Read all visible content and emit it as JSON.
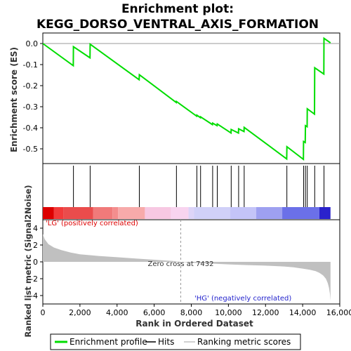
{
  "chart_data": {
    "type": "line",
    "title_line1": "Enrichment plot:",
    "title_line2": "KEGG_DORSO_VENTRAL_AXIS_FORMATION",
    "ylabel_es": "Enrichment score (ES)",
    "ylabel_metric": "Ranked list metric (Signal2Noise)",
    "xlabel": "Rank in Ordered Dataset",
    "xlim": [
      0,
      16000
    ],
    "es_ylim": [
      -0.57,
      0.05
    ],
    "metric_ylim": [
      -5,
      5
    ],
    "x_ticks": [
      0,
      2000,
      4000,
      6000,
      8000,
      10000,
      12000,
      14000,
      16000
    ],
    "x_tick_labels": [
      "0",
      "2,000",
      "4,000",
      "6,000",
      "8,000",
      "10,000",
      "12,000",
      "14,000",
      "16,000"
    ],
    "es_ticks": [
      0.0,
      -0.1,
      -0.2,
      -0.3,
      -0.4,
      -0.5
    ],
    "es_tick_labels": [
      "0.0",
      "-0.1",
      "-0.2",
      "-0.3",
      "-0.4",
      "-0.5"
    ],
    "metric_ticks": [
      4,
      2,
      0,
      -2,
      -4
    ],
    "metric_tick_labels": [
      "4",
      "2",
      "0",
      "-2",
      "-4"
    ],
    "total_genes": 15500,
    "hits": [
      1650,
      2550,
      5200,
      7200,
      8300,
      8500,
      9150,
      9400,
      10150,
      10550,
      10850,
      13150,
      14050,
      14150,
      14250,
      14650,
      15150
    ],
    "enrichment_profile": {
      "x": [
        0,
        1640,
        1650,
        2540,
        2550,
        5190,
        5200,
        7190,
        7200,
        8290,
        8300,
        8490,
        8500,
        9140,
        9150,
        9390,
        9400,
        10140,
        10150,
        10540,
        10550,
        10840,
        10850,
        13140,
        13150,
        14040,
        14050,
        14140,
        14150,
        14240,
        14250,
        14640,
        14650,
        15140,
        15150,
        15500
      ],
      "y": [
        0.0,
        -0.105,
        -0.015,
        -0.068,
        -0.003,
        -0.172,
        -0.148,
        -0.28,
        -0.275,
        -0.345,
        -0.34,
        -0.352,
        -0.348,
        -0.385,
        -0.378,
        -0.39,
        -0.382,
        -0.425,
        -0.408,
        -0.425,
        -0.405,
        -0.418,
        -0.398,
        -0.548,
        -0.49,
        -0.55,
        -0.465,
        -0.47,
        -0.39,
        -0.395,
        -0.31,
        -0.335,
        -0.115,
        -0.145,
        0.025,
        0.003
      ]
    },
    "ranked_metric": {
      "x": [
        0,
        100,
        300,
        600,
        1000,
        1500,
        2000,
        3000,
        4000,
        5000,
        6000,
        7000,
        7432,
        8000,
        9000,
        10000,
        11000,
        12000,
        13000,
        13500,
        14000,
        14400,
        14700,
        14900,
        15100,
        15250,
        15350,
        15420,
        15470,
        15500
      ],
      "y": [
        3.3,
        2.7,
        2.1,
        1.7,
        1.4,
        1.1,
        0.9,
        0.7,
        0.55,
        0.4,
        0.25,
        0.1,
        0.0,
        -0.1,
        -0.2,
        -0.3,
        -0.38,
        -0.45,
        -0.55,
        -0.65,
        -0.8,
        -0.95,
        -1.1,
        -1.3,
        -1.6,
        -2.0,
        -2.5,
        -3.1,
        -3.8,
        -4.6
      ]
    },
    "zero_cross_label": "Zero cross at 7432",
    "zero_cross": 7432,
    "pos_label": "'LG' (positively correlated)",
    "neg_label": "'HG' (negatively correlated)",
    "colors": {
      "profile": "#00dd00",
      "hit": "#000000",
      "metric_fill": "#c0c0c0",
      "pos_text": "#dd0000",
      "neg_text": "#2222cc",
      "zero_cross": "#999999"
    },
    "color_bar": {
      "x": [
        0,
        600,
        1100,
        2700,
        2750,
        3750,
        4050,
        5500,
        6900,
        7850,
        8150,
        10100,
        11500,
        12900,
        14900,
        15500
      ],
      "colors": [
        "#dd0000",
        "#f23a3a",
        "#ea4c4c",
        "#ee6161",
        "#f07a7a",
        "#f48d8d",
        "#f7aaaa",
        "#f7c8e2",
        "#f8d4ef",
        "#ddd4f8",
        "#d0d0f8",
        "#c4c4f8",
        "#9ea0f0",
        "#6b70e8",
        "#2a22cc"
      ]
    },
    "legend": [
      "Enrichment profile",
      "Hits",
      "Ranking metric scores"
    ]
  }
}
